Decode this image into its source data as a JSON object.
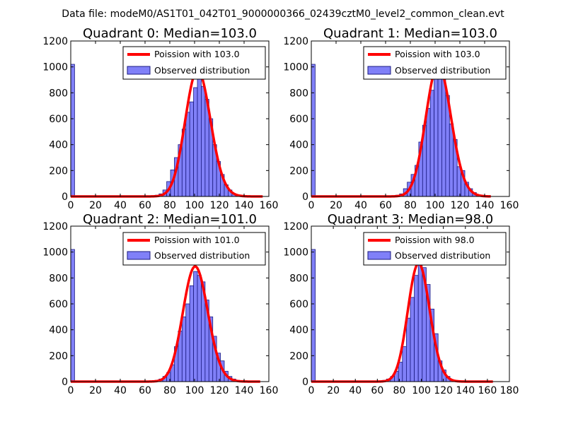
{
  "figure_title": "Data file: modeM0/AS1T01_042T01_9000000366_02439cztM0_level2_common_clean.evt",
  "colors": {
    "bar_fill": "#8080f8",
    "bar_edge": "#1a1a80",
    "poisson": "#ff0000",
    "axes": "#000000",
    "legend_edge": "#000000"
  },
  "chart_data": [
    {
      "type": "bar",
      "title": "Quadrant 0: Median=103.0",
      "xlim": [
        0,
        160
      ],
      "ylim": [
        0,
        1200
      ],
      "xticks": [
        0,
        20,
        40,
        60,
        80,
        100,
        120,
        140,
        160
      ],
      "yticks": [
        0,
        200,
        400,
        600,
        800,
        1000,
        1200
      ],
      "bin_width": 3.1,
      "median": 103.0,
      "legend": [
        "Poission with 103.0",
        "Observed distribution"
      ],
      "legend_location": "upper right",
      "bins": [
        {
          "x": 0.0,
          "y": 1020
        },
        {
          "x": 68.2,
          "y": 10
        },
        {
          "x": 71.3,
          "y": 20
        },
        {
          "x": 74.4,
          "y": 50
        },
        {
          "x": 77.5,
          "y": 115
        },
        {
          "x": 80.6,
          "y": 205
        },
        {
          "x": 83.7,
          "y": 300
        },
        {
          "x": 86.8,
          "y": 400
        },
        {
          "x": 89.9,
          "y": 520
        },
        {
          "x": 93.0,
          "y": 650
        },
        {
          "x": 96.1,
          "y": 730
        },
        {
          "x": 99.2,
          "y": 840
        },
        {
          "x": 102.3,
          "y": 960
        },
        {
          "x": 105.4,
          "y": 850
        },
        {
          "x": 108.5,
          "y": 750
        },
        {
          "x": 111.6,
          "y": 600
        },
        {
          "x": 114.7,
          "y": 400
        },
        {
          "x": 117.8,
          "y": 270
        },
        {
          "x": 120.9,
          "y": 170
        },
        {
          "x": 124.0,
          "y": 90
        },
        {
          "x": 127.1,
          "y": 50
        },
        {
          "x": 130.2,
          "y": 20
        },
        {
          "x": 133.3,
          "y": 10
        }
      ],
      "curve_range": [
        0,
        155
      ]
    },
    {
      "type": "bar",
      "title": "Quadrant 1: Median=103.0",
      "xlim": [
        0,
        160
      ],
      "ylim": [
        0,
        1200
      ],
      "xticks": [
        0,
        20,
        40,
        60,
        80,
        100,
        120,
        140,
        160
      ],
      "yticks": [
        0,
        200,
        400,
        600,
        800,
        1000,
        1200
      ],
      "bin_width": 3.1,
      "median": 103.0,
      "legend": [
        "Poission with 103.0",
        "Observed distribution"
      ],
      "legend_location": "upper right",
      "bins": [
        {
          "x": 0.0,
          "y": 1020
        },
        {
          "x": 68.2,
          "y": 10
        },
        {
          "x": 71.3,
          "y": 20
        },
        {
          "x": 74.4,
          "y": 60
        },
        {
          "x": 77.5,
          "y": 110
        },
        {
          "x": 80.6,
          "y": 170
        },
        {
          "x": 83.7,
          "y": 240
        },
        {
          "x": 86.8,
          "y": 420
        },
        {
          "x": 89.9,
          "y": 550
        },
        {
          "x": 93.0,
          "y": 680
        },
        {
          "x": 96.1,
          "y": 820
        },
        {
          "x": 99.2,
          "y": 920
        },
        {
          "x": 102.3,
          "y": 980
        },
        {
          "x": 105.4,
          "y": 910
        },
        {
          "x": 108.5,
          "y": 780
        },
        {
          "x": 111.6,
          "y": 560
        },
        {
          "x": 114.7,
          "y": 440
        },
        {
          "x": 117.8,
          "y": 230
        },
        {
          "x": 120.9,
          "y": 200
        },
        {
          "x": 124.0,
          "y": 110
        },
        {
          "x": 127.1,
          "y": 60
        },
        {
          "x": 130.2,
          "y": 30
        },
        {
          "x": 133.3,
          "y": 10
        }
      ],
      "curve_range": [
        0,
        145
      ]
    },
    {
      "type": "bar",
      "title": "Quadrant 2: Median=101.0",
      "xlim": [
        0,
        160
      ],
      "ylim": [
        0,
        1200
      ],
      "xticks": [
        0,
        20,
        40,
        60,
        80,
        100,
        120,
        140,
        160
      ],
      "yticks": [
        0,
        200,
        400,
        600,
        800,
        1000,
        1200
      ],
      "bin_width": 3.1,
      "median": 101.0,
      "legend": [
        "Poission with 101.0",
        "Observed distribution"
      ],
      "legend_location": "upper right",
      "bins": [
        {
          "x": 0.0,
          "y": 1020
        },
        {
          "x": 68.2,
          "y": 10
        },
        {
          "x": 71.3,
          "y": 20
        },
        {
          "x": 74.4,
          "y": 40
        },
        {
          "x": 77.5,
          "y": 70
        },
        {
          "x": 80.6,
          "y": 130
        },
        {
          "x": 83.7,
          "y": 270
        },
        {
          "x": 86.8,
          "y": 390
        },
        {
          "x": 89.9,
          "y": 500
        },
        {
          "x": 93.0,
          "y": 600
        },
        {
          "x": 96.1,
          "y": 740
        },
        {
          "x": 99.2,
          "y": 850
        },
        {
          "x": 102.3,
          "y": 820
        },
        {
          "x": 105.4,
          "y": 770
        },
        {
          "x": 108.5,
          "y": 630
        },
        {
          "x": 111.6,
          "y": 500
        },
        {
          "x": 114.7,
          "y": 350
        },
        {
          "x": 117.8,
          "y": 220
        },
        {
          "x": 120.9,
          "y": 160
        },
        {
          "x": 124.0,
          "y": 80
        },
        {
          "x": 127.1,
          "y": 40
        },
        {
          "x": 130.2,
          "y": 20
        },
        {
          "x": 133.3,
          "y": 10
        }
      ],
      "curve_range": [
        0,
        153
      ]
    },
    {
      "type": "bar",
      "title": "Quadrant 3: Median=98.0",
      "xlim": [
        0,
        180
      ],
      "ylim": [
        0,
        1200
      ],
      "xticks": [
        0,
        20,
        40,
        60,
        80,
        100,
        120,
        140,
        160,
        180
      ],
      "yticks": [
        0,
        200,
        400,
        600,
        800,
        1000,
        1200
      ],
      "bin_width": 3.6,
      "median": 98.0,
      "legend": [
        "Poission with 98.0",
        "Observed distribution"
      ],
      "legend_location": "upper right",
      "bins": [
        {
          "x": 0.0,
          "y": 1020
        },
        {
          "x": 64.8,
          "y": 10
        },
        {
          "x": 68.4,
          "y": 20
        },
        {
          "x": 72.0,
          "y": 40
        },
        {
          "x": 75.6,
          "y": 80
        },
        {
          "x": 79.2,
          "y": 150
        },
        {
          "x": 82.8,
          "y": 270
        },
        {
          "x": 86.4,
          "y": 490
        },
        {
          "x": 90.0,
          "y": 650
        },
        {
          "x": 93.6,
          "y": 820
        },
        {
          "x": 97.2,
          "y": 900
        },
        {
          "x": 100.8,
          "y": 880
        },
        {
          "x": 104.4,
          "y": 750
        },
        {
          "x": 108.0,
          "y": 560
        },
        {
          "x": 111.6,
          "y": 370
        },
        {
          "x": 115.2,
          "y": 160
        },
        {
          "x": 118.8,
          "y": 90
        },
        {
          "x": 122.4,
          "y": 40
        },
        {
          "x": 126.0,
          "y": 10
        }
      ],
      "curve_range": [
        0,
        165
      ]
    }
  ]
}
